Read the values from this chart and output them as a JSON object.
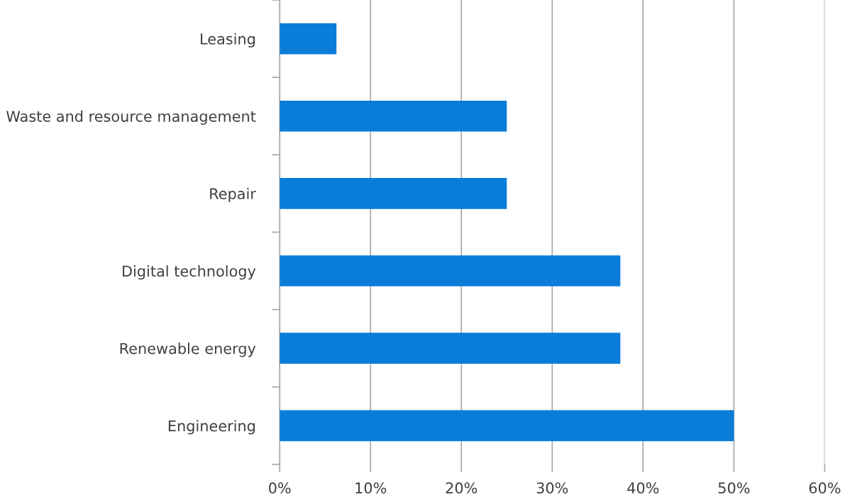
{
  "chart_data": {
    "type": "bar",
    "orientation": "horizontal",
    "categories": [
      "Leasing",
      "Waste and resource management",
      "Repair",
      "Digital technology",
      "Renewable energy",
      "Engineering"
    ],
    "values": [
      6.25,
      25,
      25,
      37.5,
      37.5,
      50
    ],
    "color": "#0a7dd8",
    "xlim": [
      0,
      60
    ],
    "xticks": [
      {
        "value": 0,
        "label": "0%"
      },
      {
        "value": 10,
        "label": "10%"
      },
      {
        "value": 20,
        "label": "20%"
      },
      {
        "value": 30,
        "label": "30%"
      },
      {
        "value": 40,
        "label": "40%"
      },
      {
        "value": 50,
        "label": "50%"
      },
      {
        "value": 60,
        "label": "60%"
      }
    ],
    "grid": "x",
    "legend": false
  }
}
